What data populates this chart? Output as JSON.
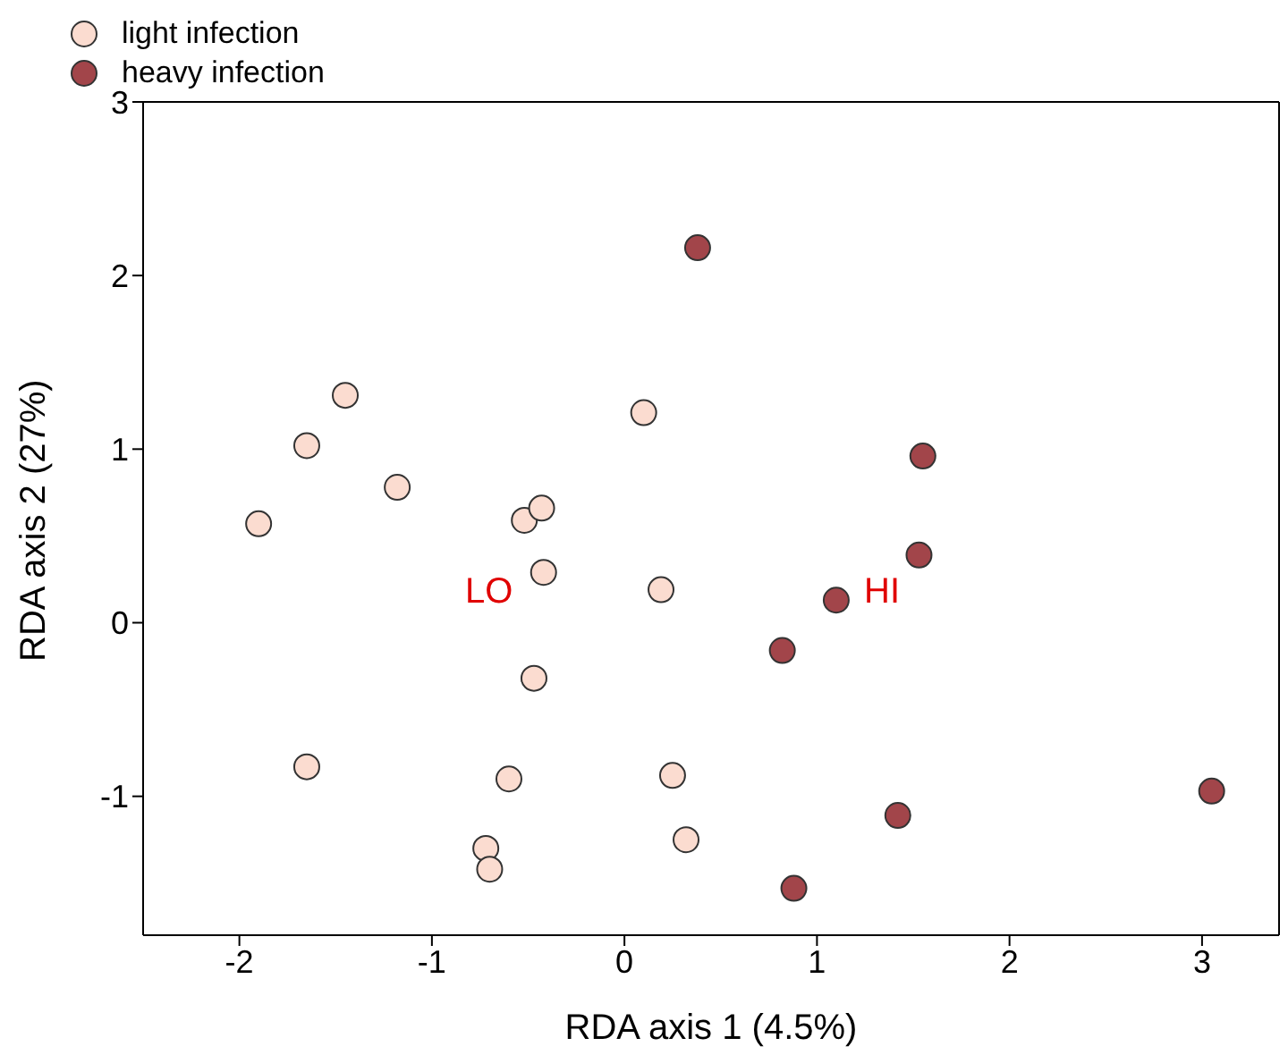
{
  "chart_data": {
    "type": "scatter",
    "xlabel": "RDA axis 1 (4.5%)",
    "ylabel": "RDA axis 2 (27%)",
    "xlim": [
      -2.5,
      3.4
    ],
    "ylim": [
      -1.8,
      3
    ],
    "xticks": [
      -2,
      -1,
      0,
      1,
      2,
      3
    ],
    "yticks": [
      -1,
      0,
      1,
      2,
      3
    ],
    "grid": false,
    "legend": "top left",
    "marker": "circle",
    "series": [
      {
        "name": "light infection",
        "color": "#fbdcd0",
        "x": [
          -1.9,
          -1.65,
          -1.45,
          -1.18,
          -1.65,
          -0.52,
          -0.43,
          -0.42,
          -0.47,
          -0.6,
          -0.72,
          -0.7,
          0.1,
          0.19,
          0.25,
          0.32
        ],
        "values": [
          0.57,
          1.02,
          1.31,
          0.78,
          -0.83,
          0.59,
          0.66,
          0.29,
          -0.32,
          -0.9,
          -1.3,
          -1.42,
          1.21,
          0.19,
          -0.88,
          -1.25
        ]
      },
      {
        "name": "heavy infection",
        "color": "#a2454a",
        "x": [
          0.38,
          1.55,
          1.53,
          1.1,
          0.82,
          1.42,
          0.88,
          3.05
        ],
        "values": [
          2.16,
          0.96,
          0.39,
          0.13,
          -0.16,
          -1.11,
          -1.53,
          -0.97
        ]
      }
    ],
    "annotations": [
      "LO",
      "HI"
    ]
  }
}
